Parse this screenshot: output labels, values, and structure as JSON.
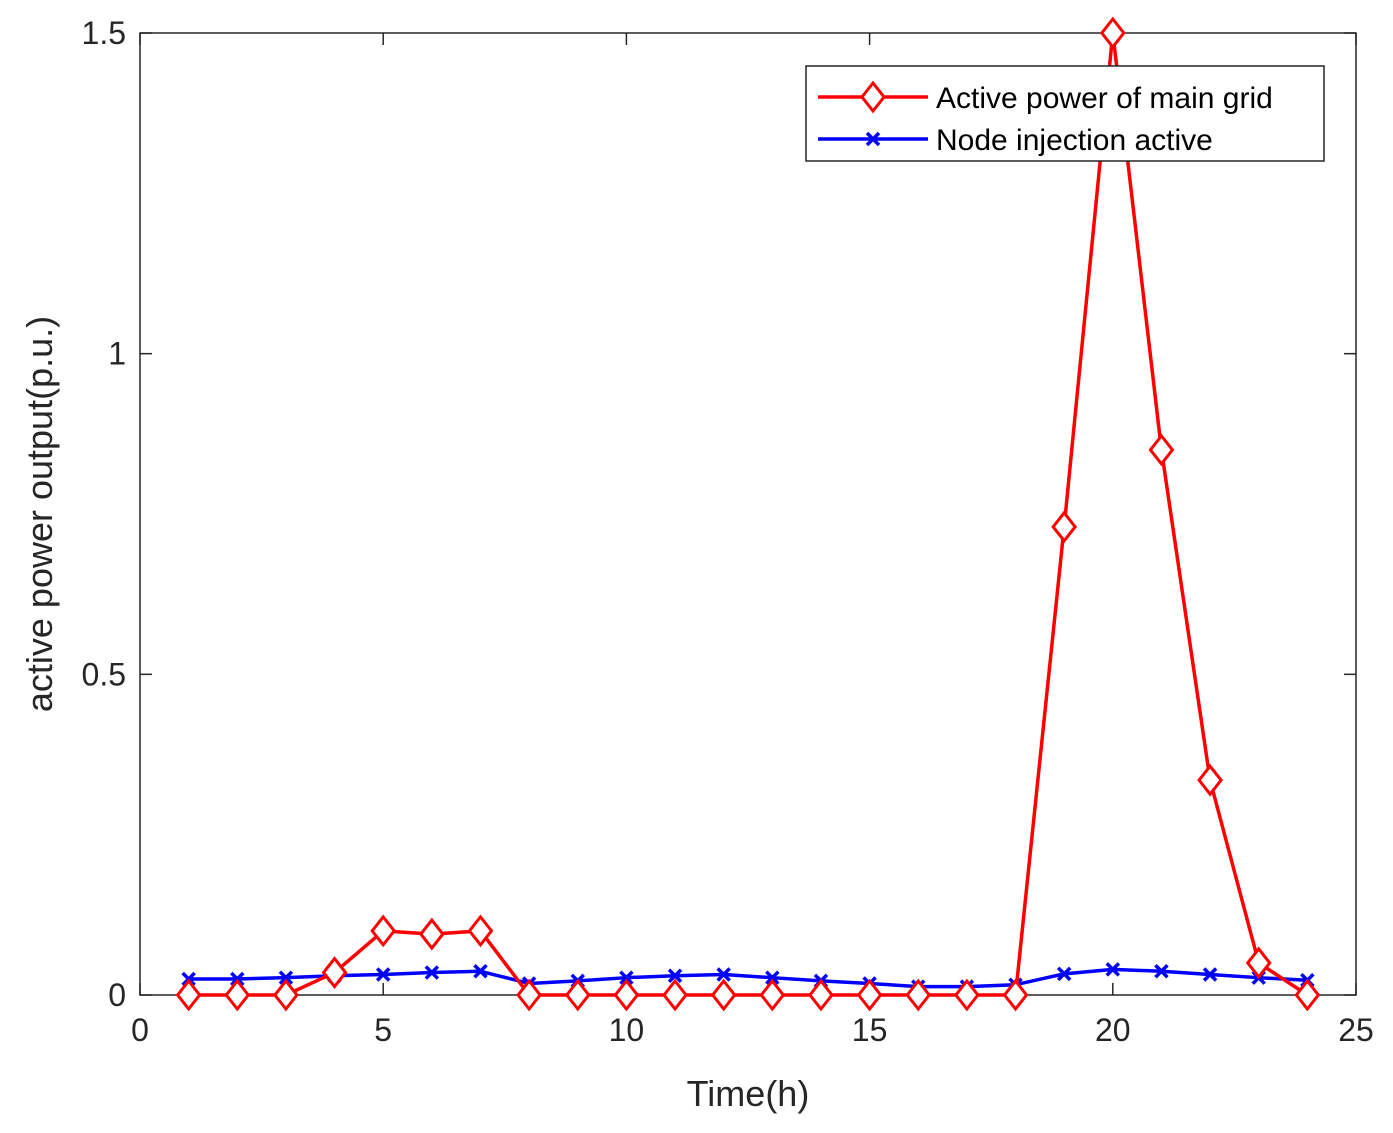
{
  "chart_data": {
    "type": "line",
    "title": "",
    "xlabel": "Time(h)",
    "ylabel": "active power output(p.u.)",
    "xlim": [
      0,
      25
    ],
    "ylim": [
      0,
      1.5
    ],
    "xticks": [
      0,
      5,
      10,
      15,
      20,
      25
    ],
    "yticks": [
      0,
      0.5,
      1,
      1.5
    ],
    "xtick_labels": [
      "0",
      "5",
      "10",
      "15",
      "20",
      "25"
    ],
    "ytick_labels": [
      "0",
      "0.5",
      "1",
      "1.5"
    ],
    "grid": false,
    "legend_position": "top-right",
    "x": [
      1,
      2,
      3,
      4,
      5,
      6,
      7,
      8,
      9,
      10,
      11,
      12,
      13,
      14,
      15,
      16,
      17,
      18,
      19,
      20,
      21,
      22,
      23,
      24
    ],
    "series": [
      {
        "name": "Active power of main grid",
        "color": "#ff0000",
        "marker": "diamond",
        "values": [
          0,
          0,
          0,
          0.035,
          0.1,
          0.095,
          0.1,
          0,
          0,
          0,
          0,
          0,
          0,
          0,
          0,
          0,
          0,
          0,
          0.73,
          1.5,
          0.85,
          0.335,
          0.05,
          0
        ]
      },
      {
        "name": "Node injection active",
        "color": "#0000ff",
        "marker": "x",
        "values": [
          0.025,
          0.025,
          0.027,
          0.03,
          0.032,
          0.035,
          0.037,
          0.018,
          0.022,
          0.027,
          0.03,
          0.032,
          0.027,
          0.022,
          0.018,
          0.013,
          0.013,
          0.016,
          0.033,
          0.04,
          0.037,
          0.032,
          0.027,
          0.023
        ]
      }
    ]
  }
}
